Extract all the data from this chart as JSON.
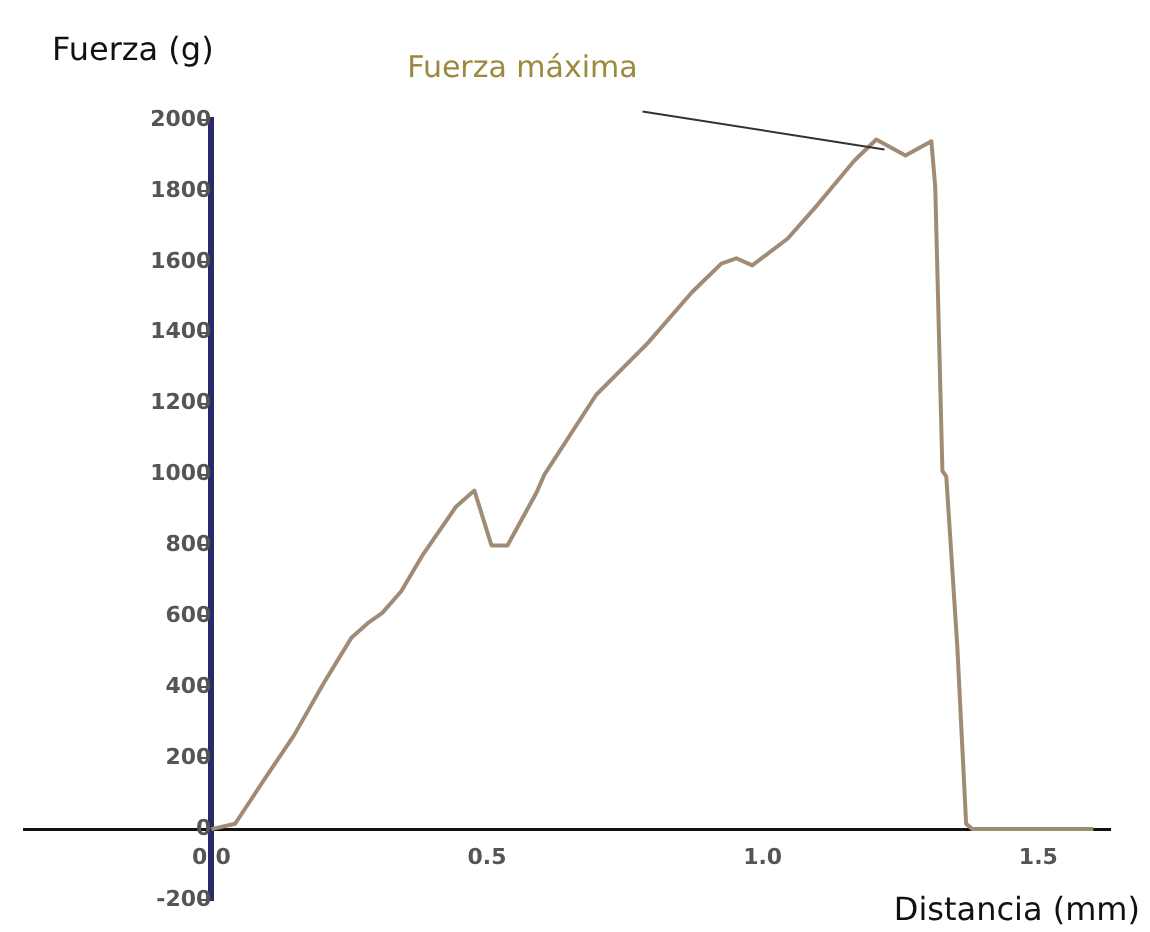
{
  "chart_data": {
    "type": "line",
    "xlabel": "Distancia (mm)",
    "ylabel": "Fuerza (g)",
    "annotations": [
      {
        "text": "Fuerza máxima",
        "x": 1.21,
        "y": 1945
      }
    ],
    "xlim": [
      -0.34,
      1.63
    ],
    "ylim": [
      -200,
      2000
    ],
    "xticks": [
      {
        "value": 0,
        "label": "0.0"
      },
      0.5,
      {
        "value": 1,
        "label": "1.0"
      },
      1.5
    ],
    "yticks": [
      -200,
      0,
      200,
      400,
      600,
      800,
      1000,
      1200,
      1400,
      1600,
      1800,
      2000
    ],
    "grid": false,
    "legend": false,
    "marker": "none",
    "line_style": "solid",
    "series": [
      {
        "color": "#a08c76",
        "x": [
          0,
          0.043,
          0.096,
          0.15,
          0.203,
          0.254,
          0.283,
          0.31,
          0.344,
          0.384,
          0.444,
          0.477,
          0.508,
          0.537,
          0.59,
          0.604,
          0.698,
          0.791,
          0.872,
          0.925,
          0.952,
          0.981,
          1.045,
          1.099,
          1.166,
          1.206,
          1.259,
          1.306,
          1.313,
          1.326,
          1.333,
          1.353,
          1.369,
          1.38,
          1.6
        ],
        "values": [
          0,
          15,
          140,
          265,
          410,
          540,
          580,
          610,
          670,
          775,
          910,
          955,
          800,
          800,
          950,
          1000,
          1225,
          1370,
          1515,
          1595,
          1610,
          1590,
          1665,
          1760,
          1885,
          1945,
          1900,
          1940,
          1810,
          1010,
          995,
          515,
          15,
          0,
          0
        ]
      }
    ]
  }
}
